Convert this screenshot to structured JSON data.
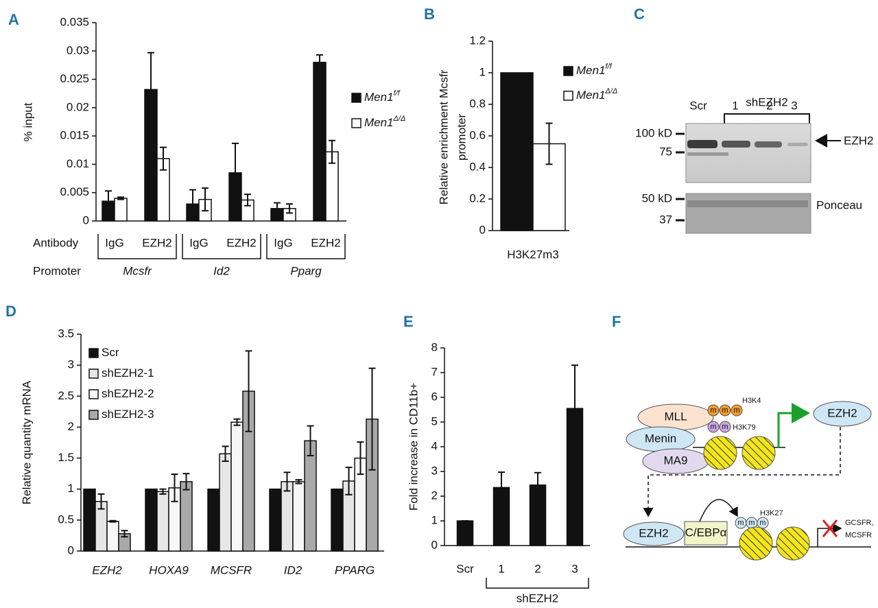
{
  "chart_data": [
    {
      "type": "bar",
      "label": "A",
      "ylabel": "% input",
      "categories": [
        "IgG",
        "EZH2",
        "IgG",
        "EZH2",
        "IgG",
        "EZH2"
      ],
      "row_labels": [
        "Antibody",
        "Promoter"
      ],
      "groups": [
        "Mcsfr",
        "Id2",
        "Pparg"
      ],
      "series": [
        {
          "name": "Men1",
          "sup": "f/f",
          "color": "#111111",
          "values": [
            0.0035,
            0.0232,
            0.003,
            0.0085,
            0.0022,
            0.028
          ],
          "errors": [
            0.0018,
            0.0065,
            0.0025,
            0.0052,
            0.001,
            0.0013
          ]
        },
        {
          "name": "Men1",
          "sup": "Δ/Δ",
          "color": "#ffffff",
          "values": [
            0.004,
            0.011,
            0.0038,
            0.0037,
            0.0022,
            0.0122
          ],
          "errors": [
            0.0002,
            0.002,
            0.002,
            0.001,
            0.0008,
            0.002
          ]
        }
      ],
      "ylim": [
        0,
        0.035
      ],
      "yticks": [
        0,
        0.005,
        0.01,
        0.015,
        0.02,
        0.025,
        0.03,
        0.035
      ]
    },
    {
      "type": "bar",
      "label": "B",
      "ylabel": [
        "Relative enrichment Mcsfr",
        "promoter"
      ],
      "categories": [
        "H3K27m3"
      ],
      "series": [
        {
          "name": "Men1",
          "sup": "f/f",
          "color": "#111111",
          "values": [
            1
          ]
        },
        {
          "name": "Men1",
          "sup": "Δ/Δ",
          "color": "#ffffff",
          "values": [
            0.55
          ],
          "errors": [
            0.13
          ]
        }
      ],
      "ylim": [
        0,
        1.2
      ],
      "yticks": [
        0,
        0.2,
        0.4,
        0.6,
        0.8,
        1,
        1.2
      ]
    },
    {
      "type": "bar",
      "label": "D",
      "ylabel": "Relative quantity mRNA",
      "categories": [
        "EZH2",
        "HOXA9",
        "MCSFR",
        "ID2",
        "PPARG"
      ],
      "series": [
        {
          "name": "Scr",
          "color": "#111111",
          "values": [
            1,
            1,
            1,
            1,
            1
          ]
        },
        {
          "name": "shEZH2-1",
          "color": "#e6e6e6",
          "values": [
            0.8,
            0.96,
            1.57,
            1.12,
            1.13
          ],
          "errors": [
            0.12,
            0.04,
            0.12,
            0.15,
            0.22
          ]
        },
        {
          "name": "shEZH2-2",
          "color": "#f7f7f7",
          "values": [
            0.48,
            1.02,
            2.08,
            1.12,
            1.5
          ],
          "errors": [
            0.01,
            0.22,
            0.05,
            0.03,
            0.26
          ]
        },
        {
          "name": "shEZH2-3",
          "color": "#a9a9a9",
          "values": [
            0.28,
            1.12,
            2.58,
            1.78,
            2.13
          ],
          "errors": [
            0.05,
            0.13,
            0.65,
            0.24,
            0.82
          ]
        }
      ],
      "ylim": [
        0,
        3.5
      ],
      "yticks": [
        0,
        0.5,
        1,
        1.5,
        2,
        2.5,
        3,
        3.5
      ]
    },
    {
      "type": "bar",
      "label": "E",
      "ylabel": "Fold increase in CD11b+",
      "categories": [
        "Scr",
        "1",
        "2",
        "3"
      ],
      "group_label": "shEZH2",
      "values": [
        1,
        2.35,
        2.45,
        5.55
      ],
      "errors": [
        0,
        0.62,
        0.5,
        1.75
      ],
      "color": "#111111",
      "ylim": [
        0,
        8
      ],
      "yticks": [
        0,
        1,
        2,
        3,
        4,
        5,
        6,
        7,
        8
      ]
    }
  ],
  "blot": {
    "label": "C",
    "group": "shEZH2",
    "lanes": [
      "Scr",
      "1",
      "2",
      "3"
    ],
    "markers": [
      "100 kD",
      "75",
      "50 kD",
      "37"
    ],
    "band": "EZH2",
    "stain": "Ponceau"
  },
  "diagram": {
    "label": "F",
    "mll": "MLL",
    "menin": "Menin",
    "ma9": "MA9",
    "m": "m",
    "h3k4": "H3K4",
    "h3k79": "H3K79",
    "ezh2_target": "EZH2",
    "ezh2": "EZH2",
    "cebpa": "C/EBPα",
    "h3k27": "H3K27",
    "genes": [
      "GCSFR,",
      "MCSFR"
    ]
  }
}
